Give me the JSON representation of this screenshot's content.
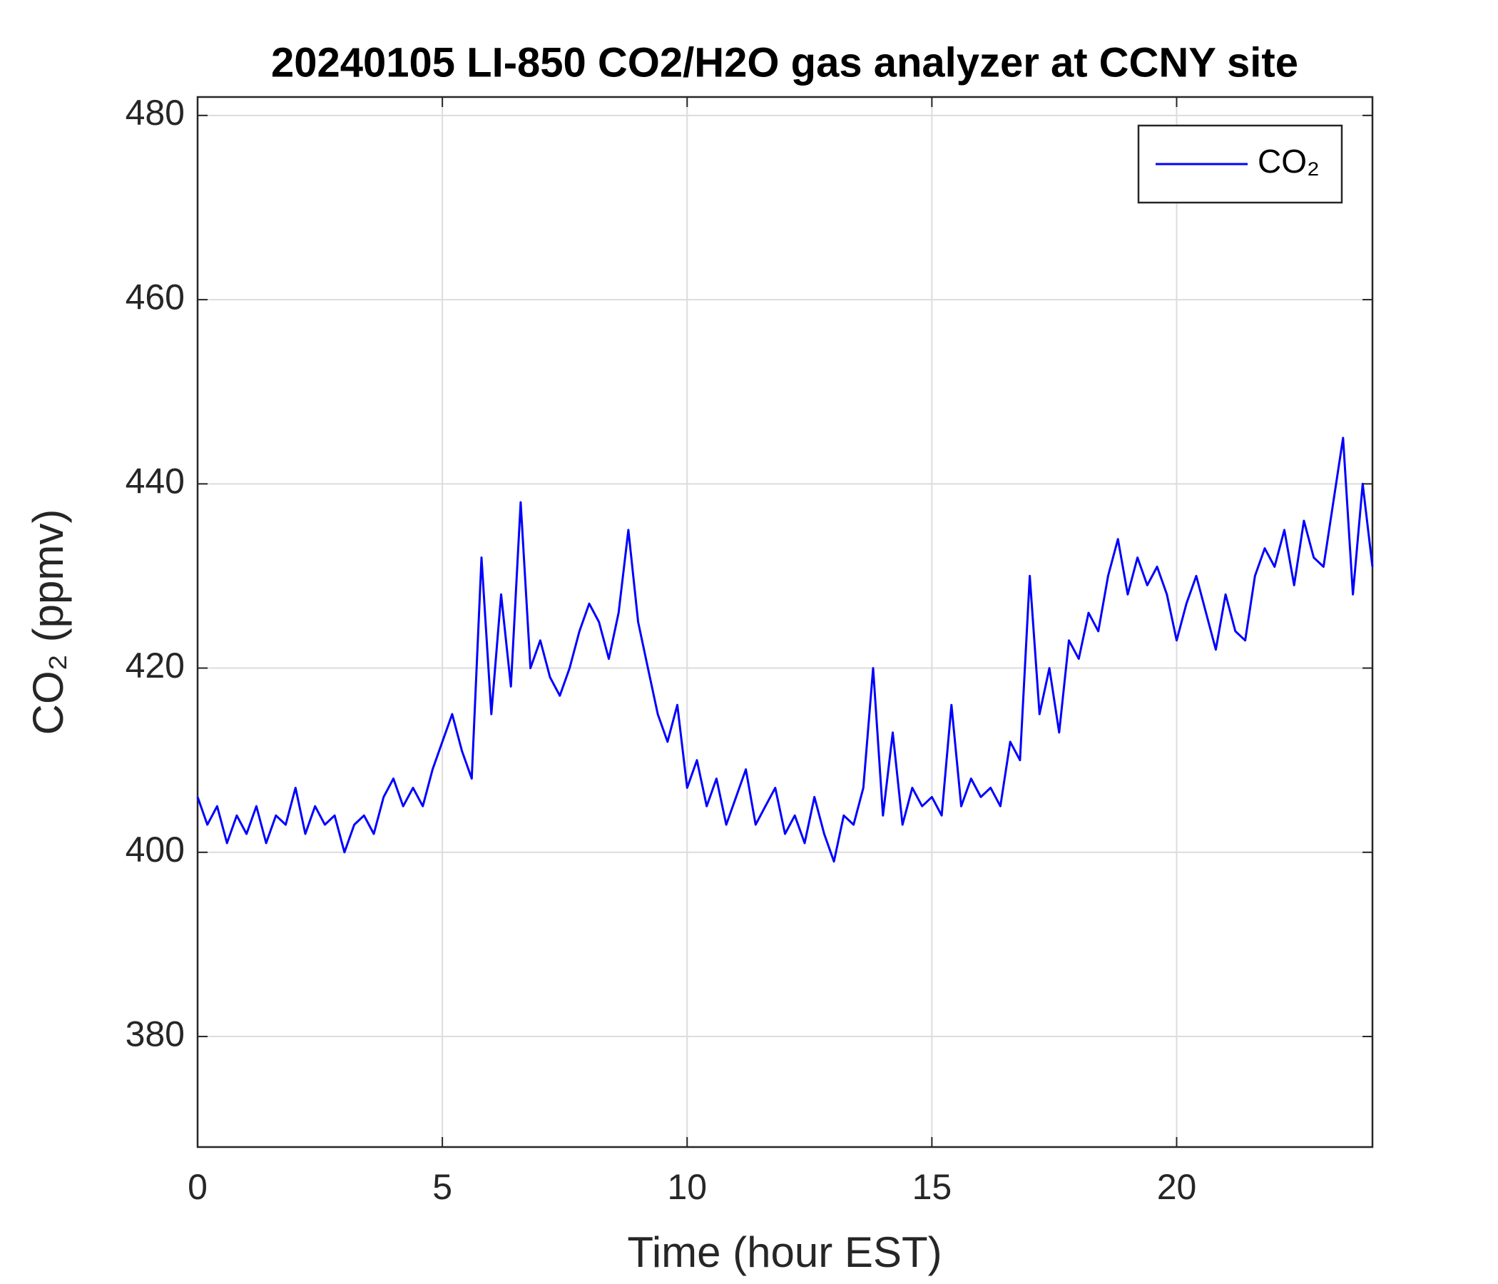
{
  "chart_data": {
    "type": "line",
    "title": "20240105 LI-850 CO2/H2O gas analyzer at CCNY site",
    "x_label": "Time (hour EST)",
    "y_label": "CO₂ (ppmv)",
    "x": [
      0,
      0.2,
      0.4,
      0.6,
      0.8,
      1,
      1.2,
      1.4,
      1.6,
      1.8,
      2,
      2.2,
      2.4,
      2.6,
      2.8,
      3,
      3.2,
      3.4,
      3.6,
      3.8,
      4,
      4.2,
      4.4,
      4.6,
      4.8,
      5,
      5.2,
      5.4,
      5.6,
      5.8,
      6,
      6.2,
      6.4,
      6.6,
      6.8,
      7,
      7.2,
      7.4,
      7.6,
      7.8,
      8,
      8.2,
      8.4,
      8.6,
      8.8,
      9,
      9.2,
      9.4,
      9.6,
      9.8,
      10,
      10.2,
      10.4,
      10.6,
      10.8,
      11,
      11.2,
      11.4,
      11.6,
      11.8,
      12,
      12.2,
      12.4,
      12.6,
      12.8,
      13,
      13.2,
      13.4,
      13.6,
      13.8,
      14,
      14.2,
      14.4,
      14.6,
      14.8,
      15,
      15.2,
      15.4,
      15.6,
      15.8,
      16,
      16.2,
      16.4,
      16.6,
      16.8,
      17,
      17.2,
      17.4,
      17.6,
      17.8,
      18,
      18.2,
      18.4,
      18.6,
      18.8,
      19,
      19.2,
      19.4,
      19.6,
      19.8,
      20,
      20.2,
      20.4,
      20.6,
      20.8,
      21,
      21.2,
      21.4,
      21.6,
      21.8,
      22,
      22.2,
      22.4,
      22.6,
      22.8,
      23,
      23.2,
      23.4,
      23.6,
      23.8,
      24
    ],
    "series": [
      {
        "name": "CO₂",
        "color": "#0000ff",
        "values": [
          406,
          403,
          405,
          401,
          404,
          402,
          405,
          401,
          404,
          403,
          407,
          402,
          405,
          403,
          404,
          400,
          403,
          404,
          402,
          406,
          408,
          405,
          407,
          405,
          409,
          412,
          415,
          411,
          408,
          432,
          415,
          428,
          418,
          438,
          420,
          423,
          419,
          417,
          420,
          424,
          427,
          425,
          421,
          426,
          435,
          425,
          420,
          415,
          412,
          416,
          407,
          410,
          405,
          408,
          403,
          406,
          409,
          403,
          405,
          407,
          402,
          404,
          401,
          406,
          402,
          399,
          404,
          403,
          407,
          420,
          404,
          413,
          403,
          407,
          405,
          406,
          404,
          416,
          405,
          408,
          406,
          407,
          405,
          412,
          410,
          430,
          415,
          420,
          413,
          423,
          421,
          426,
          424,
          430,
          434,
          428,
          432,
          429,
          431,
          428,
          423,
          427,
          430,
          426,
          422,
          428,
          424,
          423,
          430,
          433,
          431,
          435,
          429,
          436,
          432,
          431,
          438,
          445,
          428,
          440,
          431
        ]
      }
    ],
    "xlim": [
      0,
      24
    ],
    "ylim": [
      368,
      482
    ],
    "xticks": [
      0,
      5,
      10,
      15,
      20
    ],
    "yticks": [
      380,
      400,
      420,
      440,
      460,
      480
    ],
    "grid": true,
    "legend": "upper right"
  }
}
